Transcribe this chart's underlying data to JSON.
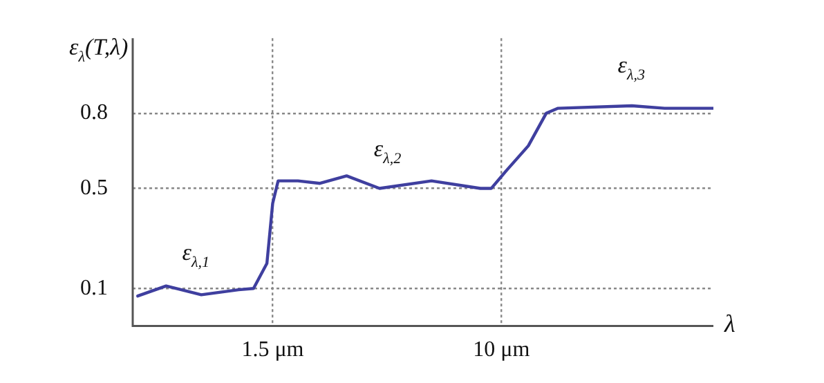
{
  "chart_data": {
    "type": "line",
    "ylabel": "ε$_{λ}$(T,λ)",
    "xlabel": "λ",
    "x": [
      0.49,
      0.62,
      0.83,
      1.13,
      1.28,
      1.43,
      1.5,
      1.57,
      1.85,
      2.22,
      2.77,
      3.64,
      5.6,
      8.4,
      9.2,
      10.4,
      12.5,
      14.5,
      16,
      29.5,
      38.7,
      58
    ],
    "series": [
      {
        "color": "#3f3f9f",
        "values": [
          0.07,
          0.11,
          0.075,
          0.095,
          0.1,
          0.2,
          0.44,
          0.53,
          0.53,
          0.52,
          0.55,
          0.5,
          0.53,
          0.5,
          0.5,
          0.57,
          0.67,
          0.8,
          0.82,
          0.83,
          0.82,
          0.82
        ]
      }
    ],
    "log": "x",
    "xlim": [
      0.47,
      58
    ],
    "xticks": [
      {
        "value": 1.5,
        "label": "1.5 μm"
      },
      {
        "value": 10,
        "label": "10 μm"
      }
    ],
    "ylim": [
      -0.05,
      1.1
    ],
    "yticks": [
      0.1,
      0.5,
      0.8
    ],
    "grid": true,
    "legend": false,
    "marker": "none",
    "line_style": "solid",
    "annotations": [
      "ε$_{λ,1}$",
      "ε$_{λ,2}$",
      "ε$_{λ,3}$"
    ]
  }
}
